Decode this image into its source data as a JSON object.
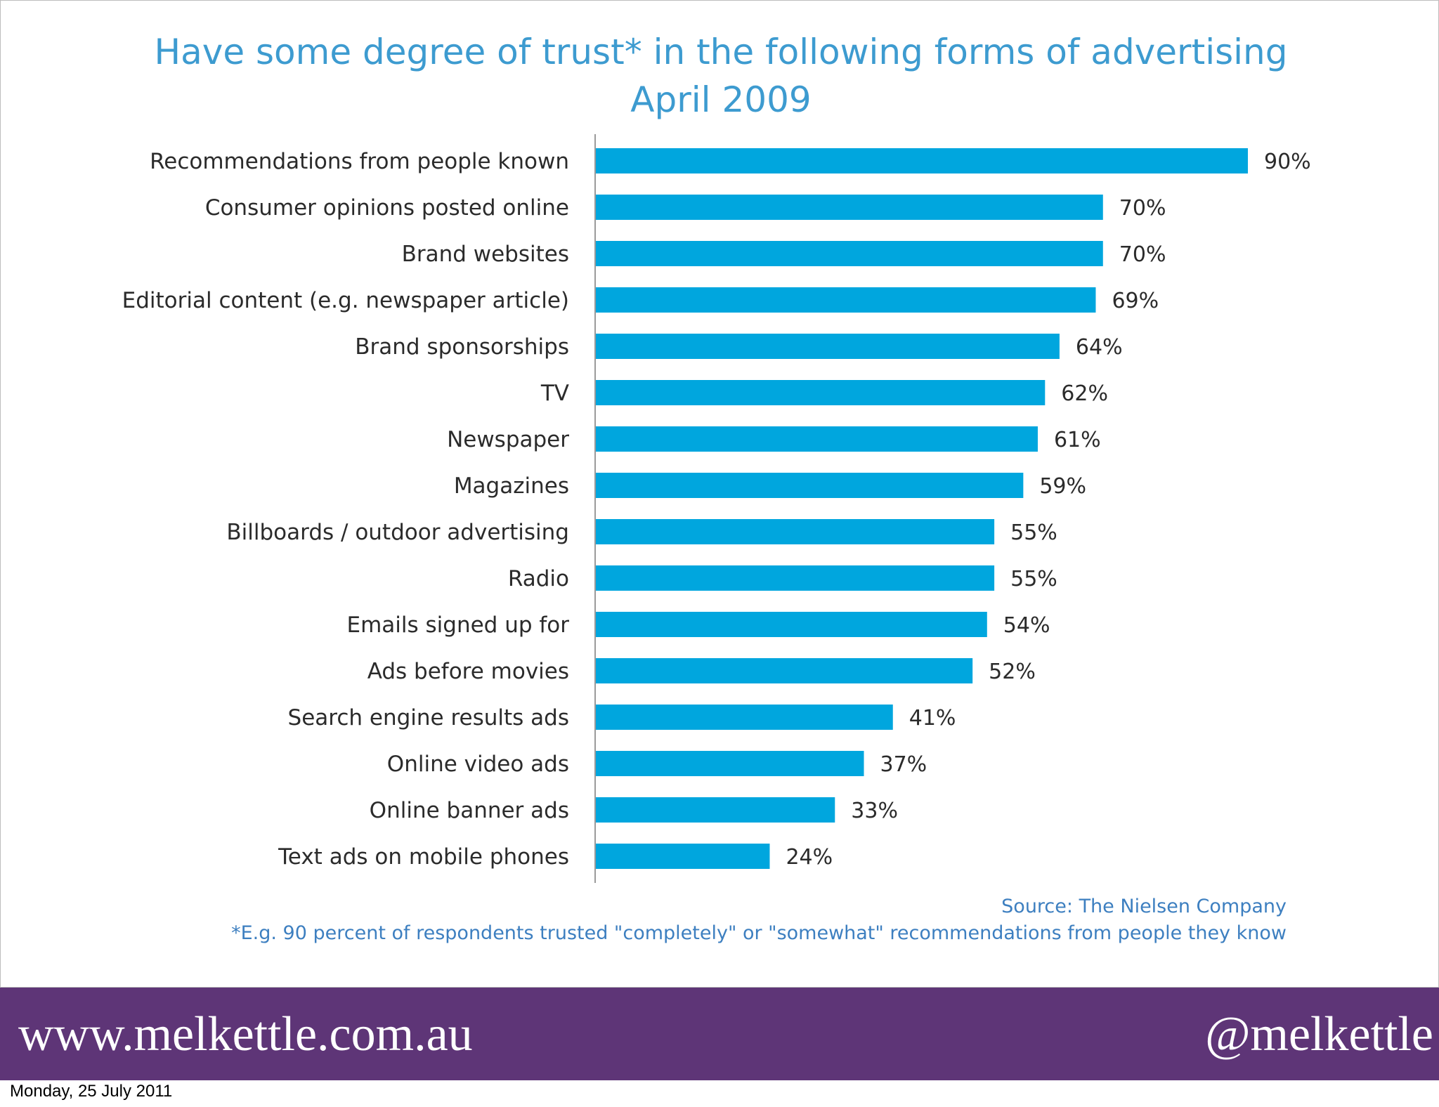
{
  "chart_data": {
    "type": "bar",
    "orientation": "horizontal",
    "title": "Have some degree of trust* in the following forms of advertising",
    "subtitle": "April 2009",
    "categories": [
      "Recommendations from people known",
      "Consumer opinions posted online",
      "Brand websites",
      "Editorial content (e.g. newspaper article)",
      "Brand sponsorships",
      "TV",
      "Newspaper",
      "Magazines",
      "Billboards / outdoor advertising",
      "Radio",
      "Emails signed up for",
      "Ads before movies",
      "Search engine results ads",
      "Online video ads",
      "Online banner ads",
      "Text ads on mobile phones"
    ],
    "values": [
      90,
      70,
      70,
      69,
      64,
      62,
      61,
      59,
      55,
      55,
      54,
      52,
      41,
      37,
      33,
      24
    ],
    "value_labels": [
      "90%",
      "70%",
      "70%",
      "69%",
      "64%",
      "62%",
      "61%",
      "59%",
      "55%",
      "55%",
      "54%",
      "52%",
      "41%",
      "37%",
      "33%",
      "24%"
    ],
    "bar_color": "#00a6de",
    "xlim": [
      0,
      90
    ],
    "grid": false,
    "source": "Source: The Nielsen Company",
    "footnote": "*E.g. 90 percent of respondents trusted \"completely\" or \"somewhat\" recommendations from people they know"
  },
  "footer": {
    "site": "www.melkettle.com.au",
    "handle": "@melkettle",
    "background": "#5e3577"
  },
  "date_stamp": "Monday, 25 July 2011"
}
